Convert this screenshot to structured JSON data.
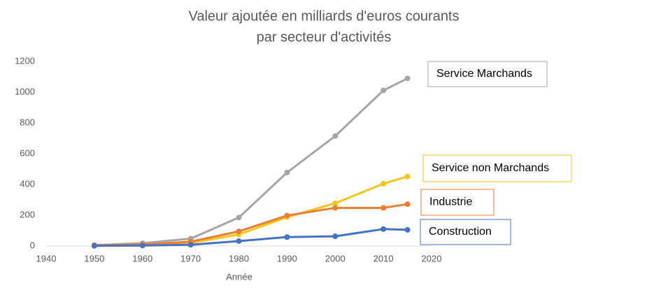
{
  "chart_data": {
    "type": "line",
    "title": [
      "Valeur ajoutée en milliards d'euros courants",
      "par secteur d'activités"
    ],
    "x_label": "Année",
    "x": [
      1950,
      1960,
      1970,
      1980,
      1990,
      2000,
      2010,
      2015
    ],
    "series": [
      {
        "name": "Service Marchands",
        "color": "#a5a5a5",
        "values": [
          5,
          18,
          48,
          185,
          478,
          715,
          1012,
          1090
        ]
      },
      {
        "name": "Service non Marchands",
        "color": "#f5c518",
        "values": [
          2,
          5,
          20,
          75,
          188,
          278,
          405,
          452
        ]
      },
      {
        "name": "Industrie",
        "color": "#ed7d31",
        "values": [
          5,
          10,
          28,
          95,
          198,
          248,
          248,
          272
        ]
      },
      {
        "name": "Construction",
        "color": "#4472c4",
        "values": [
          1,
          3,
          8,
          32,
          58,
          63,
          110,
          105
        ]
      }
    ],
    "xlim": [
      1940,
      2020
    ],
    "xticks": [
      1940,
      1950,
      1960,
      1970,
      1980,
      1990,
      2000,
      2010,
      2020
    ],
    "ylim": [
      0,
      1200
    ],
    "yticks": [
      0,
      200,
      400,
      600,
      800,
      1000,
      1200
    ],
    "grid": false
  }
}
